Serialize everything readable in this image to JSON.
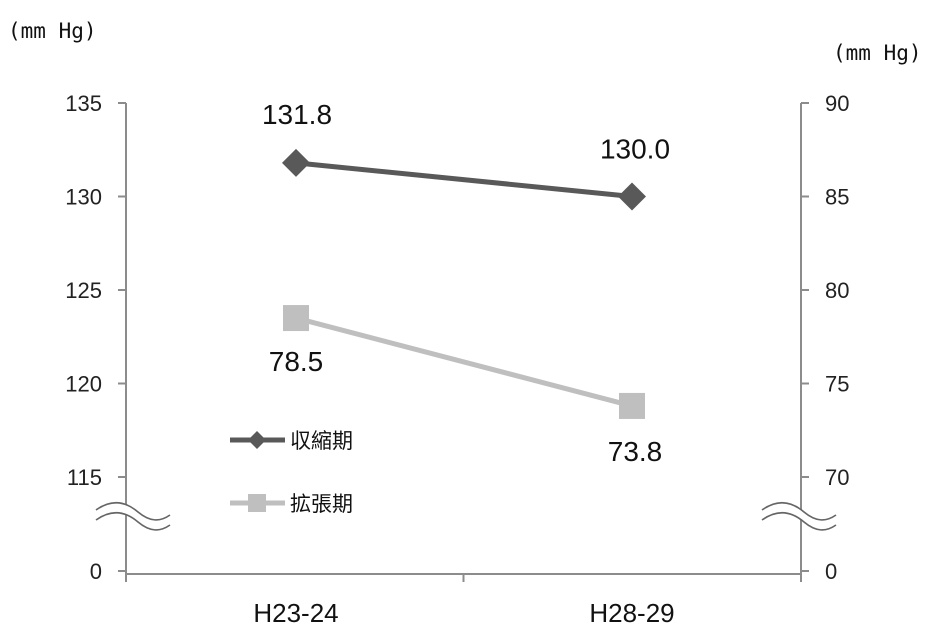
{
  "chart_data": {
    "type": "line",
    "categories": [
      "H23-24",
      "H28-29"
    ],
    "left_axis": {
      "unit": "(mm Hg)",
      "range": [
        115,
        135
      ],
      "ticks": [
        0,
        115,
        120,
        125,
        130,
        135
      ],
      "break": true
    },
    "right_axis": {
      "unit": "(mm Hg)",
      "range": [
        70,
        90
      ],
      "ticks": [
        0,
        70,
        75,
        80,
        85,
        90
      ],
      "break": true
    },
    "series": [
      {
        "name": "収縮期",
        "axis": "left",
        "values": [
          131.8,
          130.0
        ],
        "labels": [
          "131.8",
          "130.0"
        ],
        "color": "#595959",
        "marker": "diamond"
      },
      {
        "name": "拡張期",
        "axis": "right",
        "values": [
          78.5,
          73.8
        ],
        "labels": [
          "78.5",
          "73.8"
        ],
        "color": "#bfbfbf",
        "marker": "square"
      }
    ],
    "legend_position": "lower-left inside plot",
    "grid": false
  }
}
